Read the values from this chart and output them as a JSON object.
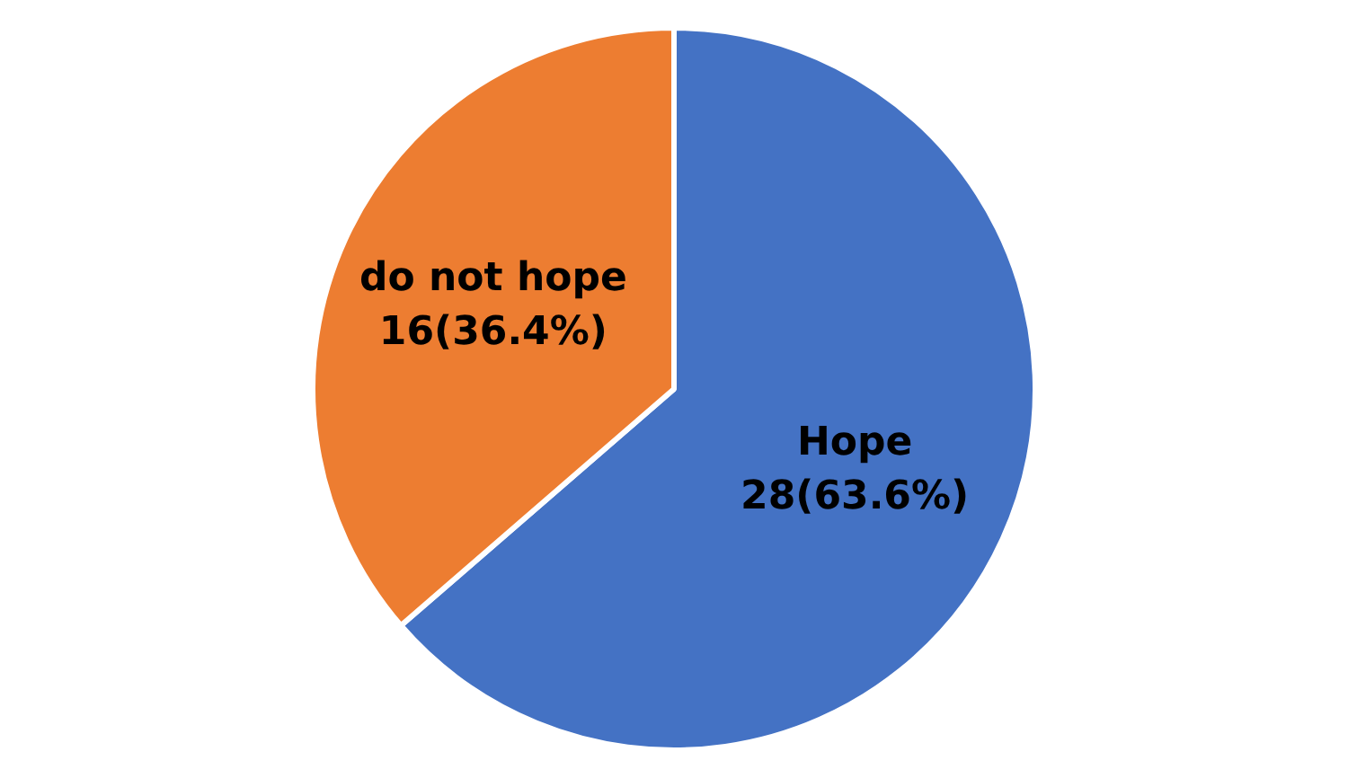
{
  "chart_data": {
    "type": "pie",
    "categories": [
      "Hope",
      "do not hope"
    ],
    "values": [
      28,
      16
    ],
    "colors": [
      "#4472c4",
      "#ed7d31"
    ],
    "value_labels": [
      "28(63.6%)",
      "16(36.4%)"
    ]
  }
}
